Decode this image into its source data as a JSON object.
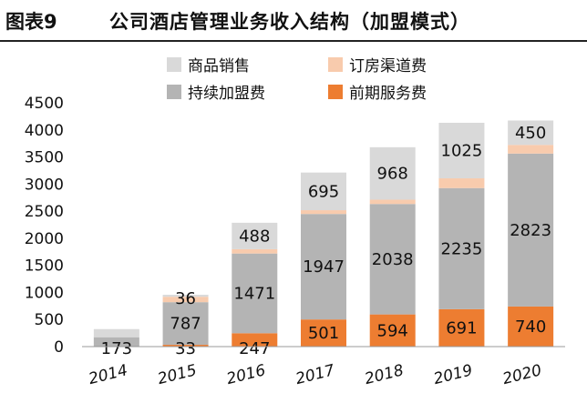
{
  "header": {
    "figure_label": "图表9",
    "title": "公司酒店管理业务收入结构（加盟模式）"
  },
  "chart_data": {
    "type": "bar",
    "stacked": true,
    "categories": [
      "2014",
      "2015",
      "2016",
      "2017",
      "2018",
      "2019",
      "2020"
    ],
    "ylim": [
      0,
      4500
    ],
    "yticks": [
      0,
      500,
      1000,
      1500,
      2000,
      2500,
      3000,
      3500,
      4000,
      4500
    ],
    "legend_position": "top",
    "series": [
      {
        "name": "前期服务费",
        "color": "#ED7D31",
        "values": [
          0,
          33,
          247,
          501,
          594,
          691,
          740
        ],
        "labels": [
          "",
          "33",
          "247",
          "501",
          "594",
          "691",
          "740"
        ]
      },
      {
        "name": "持续加盟费",
        "color": "#B4B4B4",
        "values": [
          173,
          787,
          1471,
          1947,
          2038,
          2235,
          2823
        ],
        "labels": [
          "173",
          "787",
          "1471",
          "1947",
          "2038",
          "2235",
          "2823"
        ]
      },
      {
        "name": "订房渠道费",
        "color": "#F8CBAD",
        "values": [
          0,
          100,
          80,
          70,
          80,
          180,
          160
        ],
        "labels": [
          "",
          "",
          "",
          "",
          "",
          "",
          ""
        ]
      },
      {
        "name": "商品销售",
        "color": "#D9D9D9",
        "values": [
          150,
          36,
          488,
          695,
          968,
          1025,
          450
        ],
        "labels": [
          "",
          "36",
          "488",
          "695",
          "968",
          "1025",
          "450"
        ]
      }
    ],
    "legend_order": [
      "商品销售",
      "订房渠道费",
      "持续加盟费",
      "前期服务费"
    ]
  }
}
